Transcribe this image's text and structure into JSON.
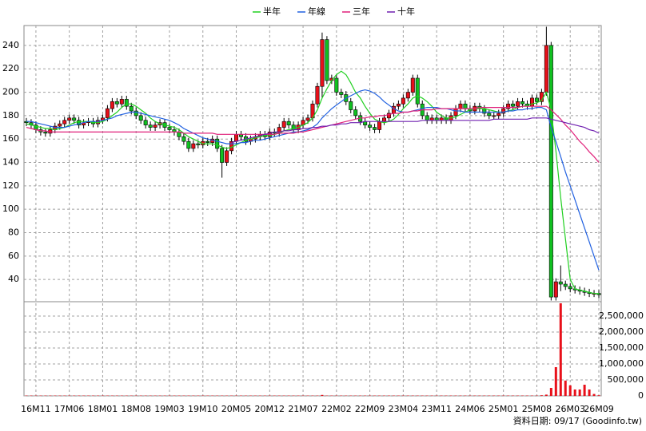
{
  "chart_data": {
    "type": "candlestick",
    "legend": "top",
    "grid": true,
    "up_color": "#e8101a",
    "down_color": "#10c020",
    "footer": "資料日期: 09/17 (Goodinfo.tw)",
    "categories": [
      null,
      null,
      "16M11",
      null,
      null,
      null,
      null,
      null,
      null,
      "17M06",
      null,
      null,
      null,
      null,
      null,
      null,
      "18M01",
      null,
      null,
      null,
      null,
      null,
      null,
      "18M08",
      null,
      null,
      null,
      null,
      null,
      null,
      "19M03",
      null,
      null,
      null,
      null,
      null,
      null,
      "19M10",
      null,
      null,
      null,
      null,
      null,
      null,
      "20M05",
      null,
      null,
      null,
      null,
      null,
      null,
      "20M12",
      null,
      null,
      null,
      null,
      null,
      null,
      "21M07",
      null,
      null,
      null,
      null,
      null,
      null,
      "22M02",
      null,
      null,
      null,
      null,
      null,
      null,
      "22M09",
      null,
      null,
      null,
      null,
      null,
      null,
      "23M04",
      null,
      null,
      null,
      null,
      null,
      null,
      "23M11",
      null,
      null,
      null,
      null,
      null,
      null,
      "24M06",
      null,
      null,
      null,
      null,
      null,
      null,
      "25M01",
      null,
      null,
      null,
      null,
      null,
      null,
      "25M08",
      null,
      null,
      null,
      null,
      null,
      null,
      "26M03",
      null,
      null,
      null,
      null,
      null,
      "26M09"
    ],
    "open": [
      175,
      174,
      172,
      168,
      166,
      165,
      168,
      171,
      173,
      176,
      178,
      176,
      172,
      174,
      175,
      173,
      176,
      178,
      186,
      192,
      190,
      194,
      188,
      184,
      180,
      176,
      172,
      170,
      172,
      174,
      170,
      168,
      166,
      162,
      158,
      152,
      156,
      155,
      158,
      157,
      160,
      152,
      140,
      150,
      158,
      164,
      162,
      158,
      160,
      162,
      164,
      162,
      166,
      165,
      170,
      175,
      172,
      168,
      172,
      176,
      178,
      190,
      205,
      245,
      210,
      212,
      200,
      198,
      192,
      185,
      180,
      175,
      172,
      170,
      168,
      175,
      178,
      182,
      188,
      190,
      195,
      200,
      212,
      190,
      180,
      176,
      178,
      176,
      178,
      176,
      180,
      186,
      190,
      186,
      184,
      188,
      186,
      182,
      180,
      180,
      182,
      186,
      190,
      188,
      192,
      190,
      188,
      195,
      192,
      200,
      240,
      25,
      38,
      36,
      34,
      32,
      31,
      30,
      29,
      28,
      28
    ],
    "high": [
      178,
      177,
      175,
      171,
      169,
      171,
      174,
      176,
      179,
      181,
      181,
      179,
      177,
      178,
      178,
      179,
      181,
      189,
      195,
      195,
      197,
      197,
      191,
      187,
      183,
      179,
      175,
      175,
      177,
      177,
      173,
      171,
      169,
      165,
      161,
      159,
      159,
      161,
      161,
      163,
      163,
      155,
      153,
      161,
      167,
      167,
      165,
      163,
      165,
      167,
      167,
      169,
      169,
      173,
      178,
      178,
      175,
      175,
      179,
      181,
      193,
      208,
      251,
      248,
      215,
      215,
      203,
      201,
      195,
      188,
      183,
      178,
      175,
      173,
      178,
      181,
      185,
      191,
      193,
      198,
      203,
      215,
      215,
      193,
      183,
      181,
      181,
      181,
      181,
      183,
      189,
      193,
      193,
      189,
      191,
      191,
      189,
      185,
      183,
      185,
      189,
      193,
      193,
      195,
      195,
      193,
      198,
      198,
      203,
      256,
      243,
      41,
      52,
      39,
      37,
      35,
      34,
      33,
      32,
      31,
      31
    ],
    "low": [
      171,
      169,
      165,
      163,
      162,
      162,
      165,
      168,
      170,
      173,
      173,
      169,
      169,
      171,
      170,
      170,
      173,
      175,
      183,
      187,
      187,
      185,
      181,
      177,
      173,
      169,
      167,
      167,
      169,
      167,
      165,
      163,
      159,
      155,
      149,
      149,
      152,
      152,
      154,
      154,
      149,
      127,
      137,
      147,
      155,
      159,
      155,
      155,
      157,
      159,
      159,
      159,
      162,
      162,
      167,
      169,
      165,
      165,
      169,
      173,
      175,
      187,
      195,
      207,
      207,
      197,
      195,
      189,
      182,
      177,
      172,
      169,
      167,
      165,
      165,
      172,
      175,
      179,
      185,
      187,
      192,
      197,
      187,
      177,
      173,
      173,
      173,
      173,
      173,
      173,
      177,
      183,
      183,
      181,
      181,
      183,
      179,
      177,
      177,
      177,
      179,
      183,
      185,
      185,
      187,
      185,
      185,
      189,
      189,
      197,
      22,
      22,
      30,
      31,
      29,
      28,
      27,
      26,
      25,
      25,
      24
    ],
    "close": [
      174,
      172,
      168,
      166,
      165,
      168,
      171,
      173,
      176,
      178,
      176,
      172,
      174,
      175,
      173,
      176,
      178,
      186,
      192,
      190,
      194,
      188,
      184,
      180,
      176,
      172,
      170,
      172,
      174,
      170,
      168,
      166,
      162,
      158,
      152,
      156,
      155,
      158,
      157,
      160,
      152,
      140,
      150,
      158,
      164,
      162,
      158,
      160,
      162,
      164,
      162,
      166,
      165,
      170,
      175,
      172,
      168,
      172,
      176,
      178,
      190,
      205,
      245,
      210,
      212,
      200,
      198,
      192,
      185,
      180,
      175,
      172,
      170,
      168,
      175,
      178,
      182,
      188,
      190,
      195,
      200,
      212,
      190,
      180,
      176,
      178,
      176,
      178,
      176,
      180,
      186,
      190,
      186,
      184,
      188,
      186,
      182,
      180,
      180,
      182,
      186,
      190,
      188,
      192,
      190,
      188,
      195,
      192,
      200,
      240,
      25,
      38,
      36,
      34,
      32,
      31,
      30,
      29,
      28,
      28,
      27
    ],
    "ylim": [
      21,
      257
    ],
    "yticks": [
      40,
      60,
      80,
      100,
      120,
      140,
      160,
      180,
      200,
      220,
      240
    ],
    "series": [
      {
        "name": "半年",
        "color": "#20d020",
        "values": [
          173,
          172,
          171,
          170,
          169,
          169,
          168,
          169,
          170,
          172,
          174,
          175,
          175,
          175,
          174,
          174,
          175,
          177,
          180,
          183,
          187,
          190,
          190,
          188,
          185,
          182,
          178,
          175,
          173,
          172,
          171,
          170,
          168,
          165,
          162,
          160,
          158,
          156,
          156,
          156,
          155,
          153,
          152,
          153,
          155,
          157,
          159,
          160,
          161,
          162,
          163,
          163,
          164,
          165,
          167,
          168,
          169,
          170,
          172,
          174,
          178,
          185,
          195,
          203,
          210,
          215,
          218,
          215,
          208,
          200,
          195,
          188,
          182,
          177,
          175,
          174,
          175,
          177,
          181,
          186,
          190,
          195,
          197,
          195,
          192,
          188,
          183,
          180,
          178,
          178,
          179,
          181,
          183,
          185,
          186,
          186,
          186,
          185,
          184,
          183,
          183,
          184,
          185,
          187,
          188,
          189,
          190,
          191,
          193,
          200,
          185,
          150,
          110,
          75,
          40,
          32,
          31,
          30,
          29,
          28,
          28
        ]
      },
      {
        "name": "年線",
        "color": "#2060e0",
        "values": [
          175,
          175,
          174,
          173,
          172,
          171,
          170,
          170,
          170,
          171,
          172,
          173,
          174,
          175,
          175,
          175,
          176,
          177,
          178,
          180,
          181,
          182,
          183,
          183,
          182,
          181,
          180,
          179,
          178,
          177,
          176,
          174,
          172,
          169,
          167,
          165,
          163,
          161,
          160,
          159,
          158,
          157,
          156,
          156,
          156,
          157,
          157,
          158,
          159,
          159,
          160,
          161,
          162,
          163,
          164,
          165,
          166,
          166,
          167,
          168,
          170,
          173,
          178,
          182,
          186,
          189,
          192,
          195,
          197,
          199,
          201,
          202,
          201,
          199,
          196,
          192,
          189,
          186,
          184,
          183,
          183,
          184,
          185,
          186,
          187,
          187,
          187,
          186,
          186,
          185,
          184,
          184,
          183,
          183,
          183,
          183,
          183,
          183,
          183,
          183,
          183,
          184,
          184,
          185,
          185,
          186,
          186,
          187,
          187,
          185,
          170,
          158,
          145,
          132,
          120,
          108,
          96,
          84,
          72,
          60,
          48
        ]
      },
      {
        "name": "三年",
        "color": "#e0207a",
        "values": [
          170,
          169,
          168,
          167,
          167,
          166,
          166,
          166,
          166,
          166,
          166,
          166,
          166,
          166,
          166,
          166,
          166,
          166,
          166,
          166,
          166,
          166,
          166,
          166,
          166,
          166,
          166,
          166,
          166,
          166,
          166,
          166,
          166,
          165,
          165,
          165,
          165,
          165,
          165,
          165,
          164,
          164,
          164,
          164,
          164,
          164,
          164,
          164,
          164,
          164,
          164,
          164,
          164,
          165,
          165,
          165,
          165,
          166,
          166,
          167,
          168,
          169,
          170,
          171,
          172,
          173,
          174,
          175,
          176,
          177,
          178,
          178,
          179,
          179,
          180,
          180,
          181,
          182,
          182,
          183,
          183,
          184,
          184,
          185,
          185,
          185,
          186,
          186,
          186,
          186,
          186,
          186,
          186,
          186,
          186,
          187,
          187,
          187,
          187,
          187,
          187,
          187,
          187,
          187,
          188,
          188,
          188,
          188,
          188,
          188,
          185,
          181,
          177,
          172,
          168,
          163,
          158,
          154,
          149,
          145,
          140
        ]
      },
      {
        "name": "十年",
        "color": "#7020b0",
        "values": [
          null,
          null,
          null,
          null,
          null,
          null,
          null,
          null,
          null,
          null,
          null,
          null,
          null,
          null,
          null,
          null,
          null,
          null,
          null,
          null,
          null,
          null,
          null,
          null,
          null,
          null,
          null,
          null,
          null,
          null,
          null,
          null,
          null,
          null,
          null,
          null,
          null,
          null,
          null,
          null,
          null,
          null,
          null,
          157,
          158,
          159,
          160,
          161,
          162,
          163,
          164,
          165,
          166,
          166,
          167,
          167,
          168,
          168,
          169,
          169,
          170,
          170,
          171,
          171,
          172,
          172,
          173,
          173,
          174,
          174,
          174,
          175,
          175,
          175,
          175,
          175,
          175,
          175,
          175,
          175,
          175,
          175,
          175,
          176,
          176,
          176,
          176,
          176,
          176,
          176,
          176,
          176,
          176,
          176,
          176,
          176,
          176,
          176,
          177,
          177,
          177,
          177,
          177,
          177,
          177,
          177,
          178,
          178,
          178,
          178,
          177,
          176,
          175,
          174,
          173,
          172,
          171,
          170,
          168,
          167,
          165
        ]
      }
    ],
    "volume": {
      "color": "#e8101a",
      "ylim": [
        0,
        2950000
      ],
      "yticks": [
        0,
        {
          "value": 500000,
          "label": "500,000"
        },
        {
          "value": 1000000,
          "label": "1,000,000"
        },
        {
          "value": 1500000,
          "label": "1,500,000"
        },
        {
          "value": 2000000,
          "label": "2,000,000"
        },
        {
          "value": 2500000,
          "label": "2,500,000"
        }
      ],
      "values": [
        10000,
        10000,
        10000,
        10000,
        10000,
        10000,
        10000,
        10000,
        10000,
        10000,
        10000,
        10000,
        10000,
        10000,
        10000,
        10000,
        10000,
        10000,
        10000,
        10000,
        10000,
        10000,
        10000,
        10000,
        10000,
        10000,
        10000,
        10000,
        10000,
        10000,
        10000,
        10000,
        10000,
        10000,
        10000,
        10000,
        10000,
        10000,
        10000,
        10000,
        10000,
        10000,
        10000,
        10000,
        10000,
        10000,
        10000,
        10000,
        10000,
        10000,
        10000,
        10000,
        10000,
        10000,
        10000,
        10000,
        10000,
        10000,
        10000,
        10000,
        10000,
        10000,
        30000,
        10000,
        10000,
        10000,
        10000,
        10000,
        10000,
        10000,
        10000,
        10000,
        10000,
        10000,
        10000,
        10000,
        10000,
        10000,
        10000,
        10000,
        10000,
        10000,
        10000,
        10000,
        10000,
        10000,
        10000,
        10000,
        10000,
        10000,
        10000,
        10000,
        10000,
        10000,
        10000,
        10000,
        10000,
        10000,
        10000,
        10000,
        10000,
        10000,
        10000,
        10000,
        10000,
        10000,
        10000,
        10000,
        20000,
        40000,
        250000,
        900000,
        2900000,
        480000,
        330000,
        200000,
        200000,
        350000,
        200000,
        60000,
        20000
      ]
    }
  }
}
